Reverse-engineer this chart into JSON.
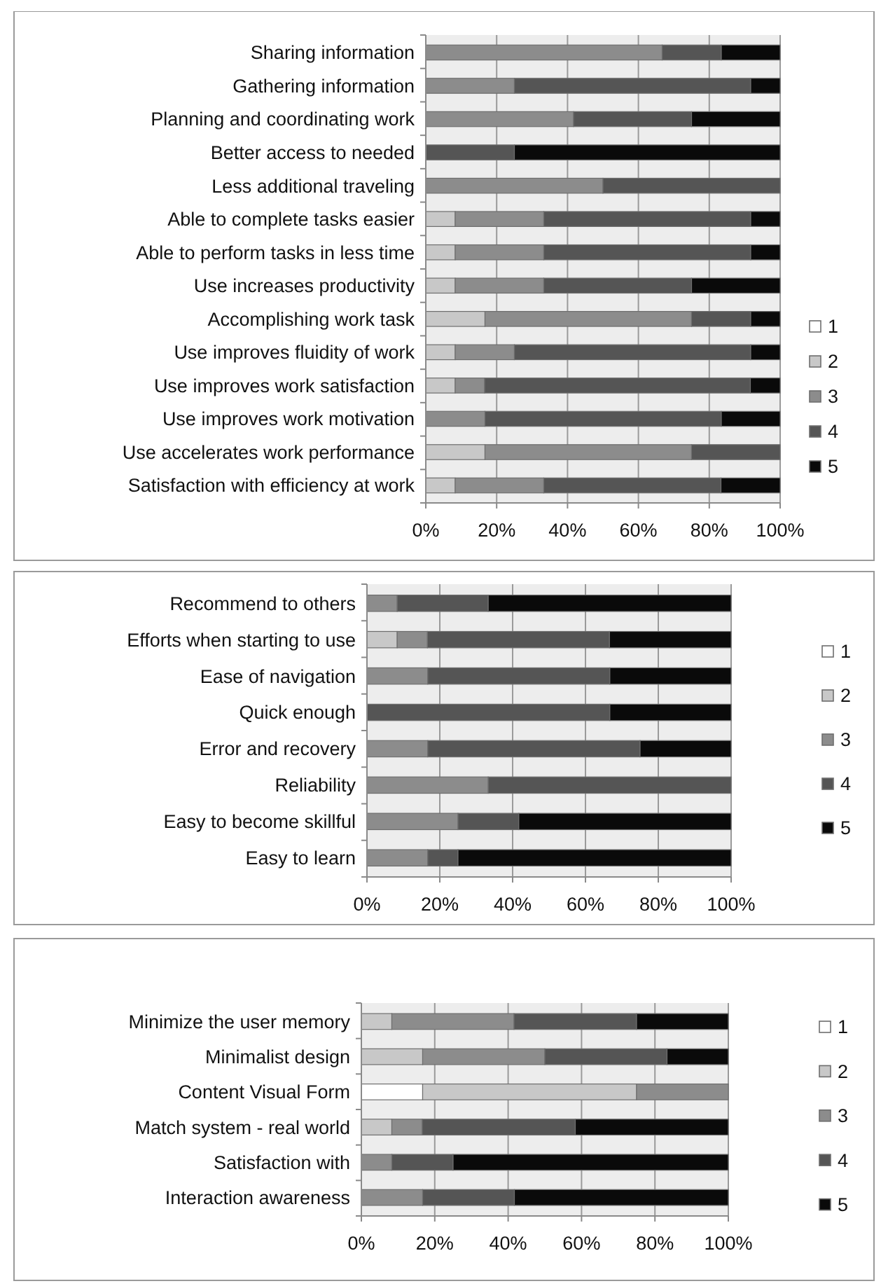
{
  "chart_data": [
    {
      "type": "bar",
      "orientation": "horizontal",
      "stacked": true,
      "categories": [
        "Sharing information",
        "Gathering information",
        "Planning and coordinating work",
        "Better access to needed",
        "Less additional traveling",
        "Able to complete tasks easier",
        "Able to perform tasks in less time",
        "Use increases productivity",
        "Accomplishing work task",
        "Use improves fluidity of work",
        "Use improves work satisfaction",
        "Use improves work motivation",
        "Use accelerates work performance",
        "Satisfaction with efficiency at work"
      ],
      "series": [
        {
          "name": "1",
          "color": "#ffffff",
          "values": [
            0,
            0,
            0,
            0,
            0,
            0,
            0,
            0,
            0,
            0,
            0,
            0,
            0,
            0
          ]
        },
        {
          "name": "2",
          "color": "#c8c8c8",
          "values": [
            0,
            0,
            0,
            0,
            0,
            8.3,
            8.3,
            8.3,
            16.7,
            8.3,
            8.3,
            0,
            16.7,
            8.3
          ]
        },
        {
          "name": "3",
          "color": "#8c8c8c",
          "values": [
            66.7,
            25,
            41.7,
            0,
            50,
            25,
            25,
            25,
            58.3,
            16.7,
            8.3,
            16.7,
            58.3,
            25
          ]
        },
        {
          "name": "4",
          "color": "#555555",
          "values": [
            16.7,
            66.7,
            33.3,
            25,
            50,
            58.4,
            58.4,
            41.7,
            16.7,
            66.7,
            75,
            66.7,
            25,
            50
          ]
        },
        {
          "name": "5",
          "color": "#0a0a0a",
          "values": [
            16.6,
            8.3,
            25,
            75,
            0,
            8.3,
            8.3,
            25,
            8.3,
            8.3,
            8.4,
            16.6,
            0,
            16.7
          ]
        }
      ],
      "xlim": [
        0,
        100
      ],
      "xticks": [
        {
          "value": 0,
          "label": "0%"
        },
        {
          "value": 20,
          "label": "20%"
        },
        {
          "value": 40,
          "label": "40%"
        },
        {
          "value": 60,
          "label": "60%"
        },
        {
          "value": 80,
          "label": "80%"
        },
        {
          "value": 100,
          "label": "100%"
        }
      ],
      "grid": "x",
      "legend": "right"
    },
    {
      "type": "bar",
      "orientation": "horizontal",
      "stacked": true,
      "categories": [
        "Recommend to others",
        "Efforts when starting to use",
        "Ease of navigation",
        "Quick enough",
        "Error and recovery",
        "Reliability",
        "Easy to become skillful",
        "Easy to learn"
      ],
      "series": [
        {
          "name": "1",
          "color": "#ffffff",
          "values": [
            0,
            0,
            0,
            0,
            0,
            0,
            0,
            0
          ]
        },
        {
          "name": "2",
          "color": "#c8c8c8",
          "values": [
            0,
            8.3,
            0,
            0,
            0,
            0,
            0,
            0
          ]
        },
        {
          "name": "3",
          "color": "#8c8c8c",
          "values": [
            8.3,
            8.3,
            16.7,
            0,
            16.7,
            33.3,
            25,
            16.7
          ]
        },
        {
          "name": "4",
          "color": "#555555",
          "values": [
            25,
            50,
            50,
            66.7,
            58.3,
            66.7,
            16.7,
            8.3
          ]
        },
        {
          "name": "5",
          "color": "#0a0a0a",
          "values": [
            66.7,
            33.4,
            33.3,
            33.3,
            25,
            0,
            58.3,
            75
          ]
        }
      ],
      "xlim": [
        0,
        100
      ],
      "xticks": [
        {
          "value": 0,
          "label": "0%"
        },
        {
          "value": 20,
          "label": "20%"
        },
        {
          "value": 40,
          "label": "40%"
        },
        {
          "value": 60,
          "label": "60%"
        },
        {
          "value": 80,
          "label": "80%"
        },
        {
          "value": 100,
          "label": "100%"
        }
      ],
      "grid": "x",
      "legend": "right"
    },
    {
      "type": "bar",
      "orientation": "horizontal",
      "stacked": true,
      "categories": [
        "Minimize the user memory",
        "Minimalist design",
        "Content Visual Form",
        "Match system - real world",
        "Satisfaction with",
        "Interaction awareness"
      ],
      "series": [
        {
          "name": "1",
          "color": "#ffffff",
          "values": [
            0,
            0,
            16.7,
            0,
            0,
            0
          ]
        },
        {
          "name": "2",
          "color": "#c8c8c8",
          "values": [
            8.3,
            16.7,
            58.3,
            8.3,
            0,
            0
          ]
        },
        {
          "name": "3",
          "color": "#8c8c8c",
          "values": [
            33.3,
            33.3,
            25,
            8.3,
            8.3,
            16.7
          ]
        },
        {
          "name": "4",
          "color": "#555555",
          "values": [
            33.4,
            33.3,
            0,
            41.7,
            16.7,
            25
          ]
        },
        {
          "name": "5",
          "color": "#0a0a0a",
          "values": [
            25,
            16.7,
            0,
            41.7,
            75,
            58.3
          ]
        }
      ],
      "xlim": [
        0,
        100
      ],
      "xticks": [
        {
          "value": 0,
          "label": "0%"
        },
        {
          "value": 20,
          "label": "20%"
        },
        {
          "value": 40,
          "label": "40%"
        },
        {
          "value": 60,
          "label": "60%"
        },
        {
          "value": 80,
          "label": "80%"
        },
        {
          "value": 100,
          "label": "100%"
        }
      ],
      "grid": "x",
      "legend": "right"
    }
  ]
}
